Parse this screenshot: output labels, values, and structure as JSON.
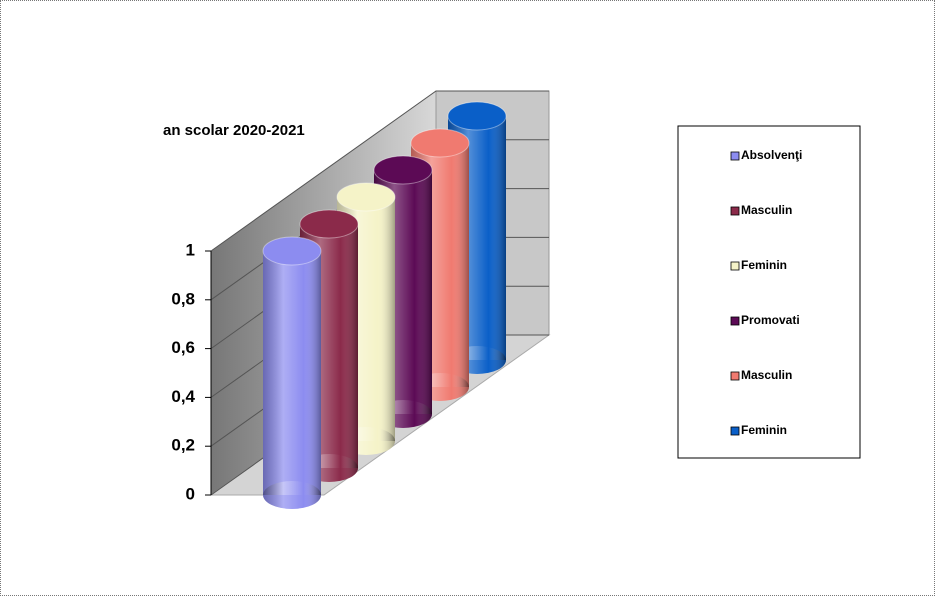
{
  "chart_data": {
    "type": "bar",
    "title": "an scolar 2020-2021",
    "series": [
      {
        "name": "Absolvenţi",
        "color": "#8c8cf0",
        "values": [
          1
        ]
      },
      {
        "name": "Masculin",
        "color": "#8b2a4a",
        "values": [
          1
        ]
      },
      {
        "name": "Feminin",
        "color": "#f5f3c8",
        "values": [
          1
        ]
      },
      {
        "name": "Promovati",
        "color": "#5c0a55",
        "values": [
          1
        ]
      },
      {
        "name": "Masculin",
        "color": "#f07a70",
        "values": [
          1
        ]
      },
      {
        "name": "Feminin",
        "color": "#0a5fc8",
        "values": [
          1
        ]
      }
    ],
    "ylim": [
      0,
      1
    ],
    "yticks": [
      0,
      {
        "value": 0.2,
        "label": "0,2"
      },
      {
        "value": 0.4,
        "label": "0,4"
      },
      {
        "value": 0.6,
        "label": "0,6"
      },
      {
        "value": 0.8,
        "label": "0,8"
      },
      1
    ],
    "grid": true,
    "legend": "right"
  }
}
